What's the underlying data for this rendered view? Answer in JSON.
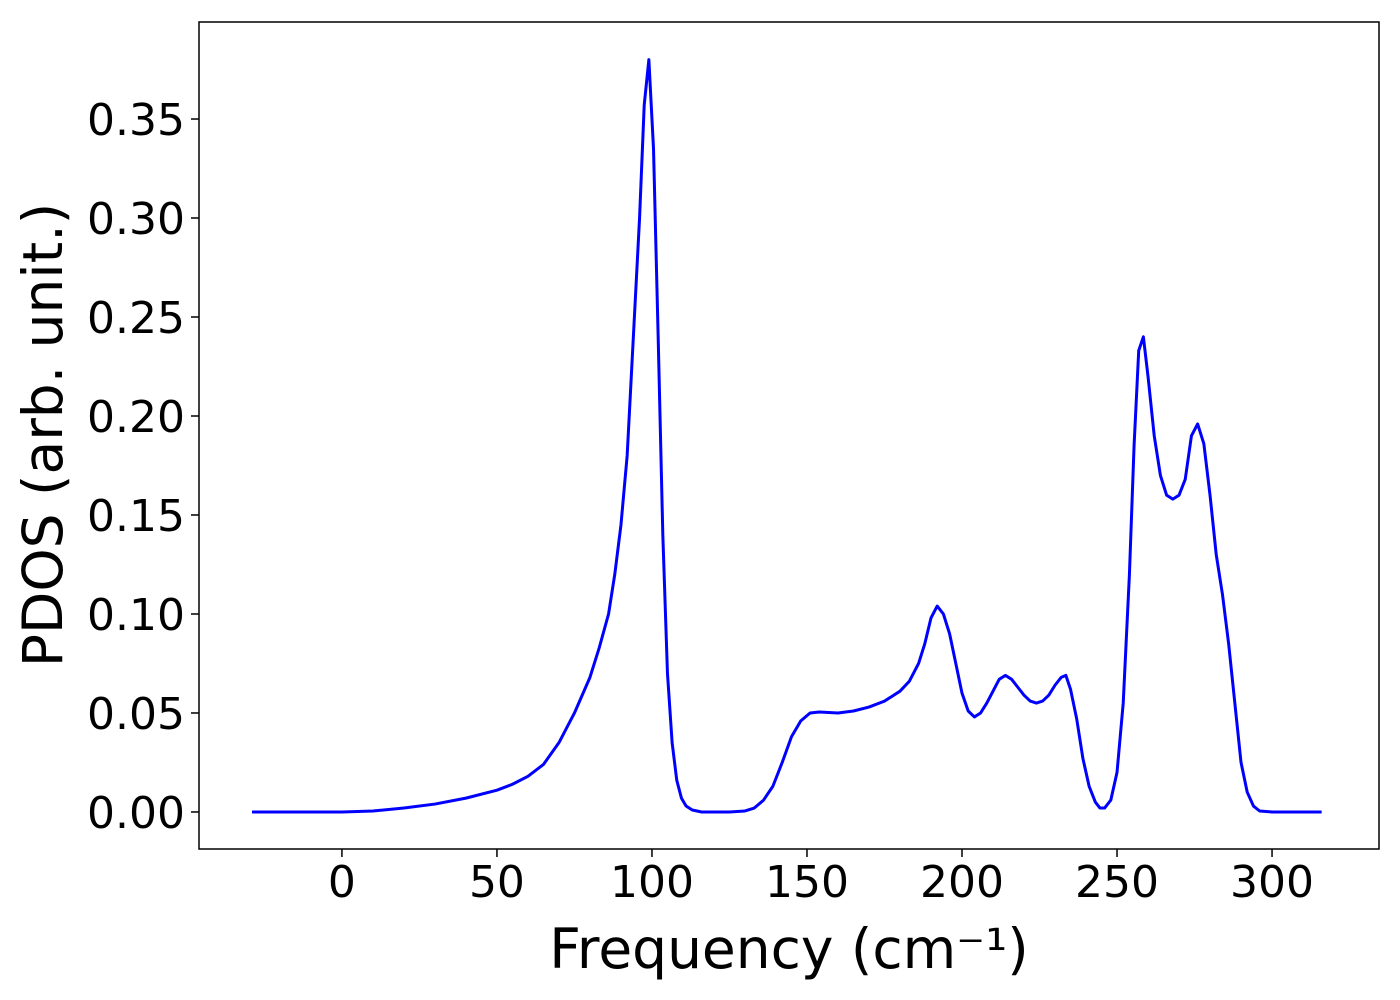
{
  "chart_data": {
    "type": "line",
    "xlabel": "Frequency (cm⁻¹)",
    "ylabel": "PDOS (arb. unit.)",
    "x": [
      -29,
      0,
      10,
      20,
      30,
      40,
      50,
      55,
      60,
      65,
      70,
      75,
      80,
      83,
      86,
      88,
      90,
      92,
      94,
      96,
      97.5,
      99,
      100.5,
      102,
      103.5,
      105,
      106.5,
      108,
      109.5,
      111,
      113,
      116,
      125,
      130,
      133,
      136,
      139,
      142,
      145,
      148,
      151,
      154,
      160,
      165,
      170,
      175,
      180,
      183,
      186,
      188,
      190,
      192,
      194,
      196,
      198,
      200,
      202,
      204,
      206,
      208,
      210,
      212,
      214,
      216,
      218,
      220,
      222,
      224,
      226,
      228,
      230,
      232,
      233.5,
      235,
      237,
      239,
      241,
      243,
      244.5,
      246,
      248,
      250,
      252,
      254,
      255.5,
      257,
      258.5,
      260,
      262,
      264,
      266,
      268,
      270,
      272,
      274,
      276,
      278,
      280,
      282,
      284,
      286,
      288,
      290,
      292,
      294,
      296,
      300,
      316
    ],
    "series": [
      {
        "color": "#0000ff",
        "values": [
          0,
          0,
          0.0005,
          0.002,
          0.004,
          0.007,
          0.011,
          0.014,
          0.018,
          0.024,
          0.035,
          0.05,
          0.068,
          0.083,
          0.1,
          0.12,
          0.145,
          0.18,
          0.24,
          0.3,
          0.357,
          0.38,
          0.335,
          0.24,
          0.14,
          0.07,
          0.035,
          0.016,
          0.007,
          0.003,
          0.001,
          0,
          0,
          0.0005,
          0.002,
          0.006,
          0.013,
          0.025,
          0.038,
          0.046,
          0.05,
          0.0505,
          0.05,
          0.051,
          0.053,
          0.056,
          0.061,
          0.066,
          0.075,
          0.085,
          0.098,
          0.104,
          0.1,
          0.09,
          0.075,
          0.06,
          0.051,
          0.048,
          0.05,
          0.055,
          0.061,
          0.067,
          0.069,
          0.067,
          0.063,
          0.059,
          0.056,
          0.055,
          0.056,
          0.059,
          0.064,
          0.068,
          0.069,
          0.062,
          0.047,
          0.027,
          0.013,
          0.005,
          0.002,
          0.002,
          0.006,
          0.02,
          0.055,
          0.12,
          0.185,
          0.233,
          0.24,
          0.22,
          0.19,
          0.17,
          0.16,
          0.158,
          0.16,
          0.168,
          0.19,
          0.196,
          0.186,
          0.16,
          0.13,
          0.11,
          0.085,
          0.055,
          0.025,
          0.01,
          0.003,
          0.0005,
          0,
          0
        ]
      }
    ],
    "xlim": [
      -46.1,
      334.5
    ],
    "ylim": [
      -0.0187,
      0.399
    ],
    "xticks": [
      0,
      50,
      100,
      150,
      200,
      250,
      300
    ],
    "yticks": [
      {
        "value": 0,
        "label": "0.00"
      },
      {
        "value": 0.05,
        "label": "0.05"
      },
      {
        "value": 0.1,
        "label": "0.10"
      },
      {
        "value": 0.15,
        "label": "0.15"
      },
      {
        "value": 0.2,
        "label": "0.20"
      },
      {
        "value": 0.25,
        "label": "0.25"
      },
      {
        "value": 0.3,
        "label": "0.30"
      },
      {
        "value": 0.35,
        "label": "0.35"
      }
    ],
    "grid": false
  }
}
